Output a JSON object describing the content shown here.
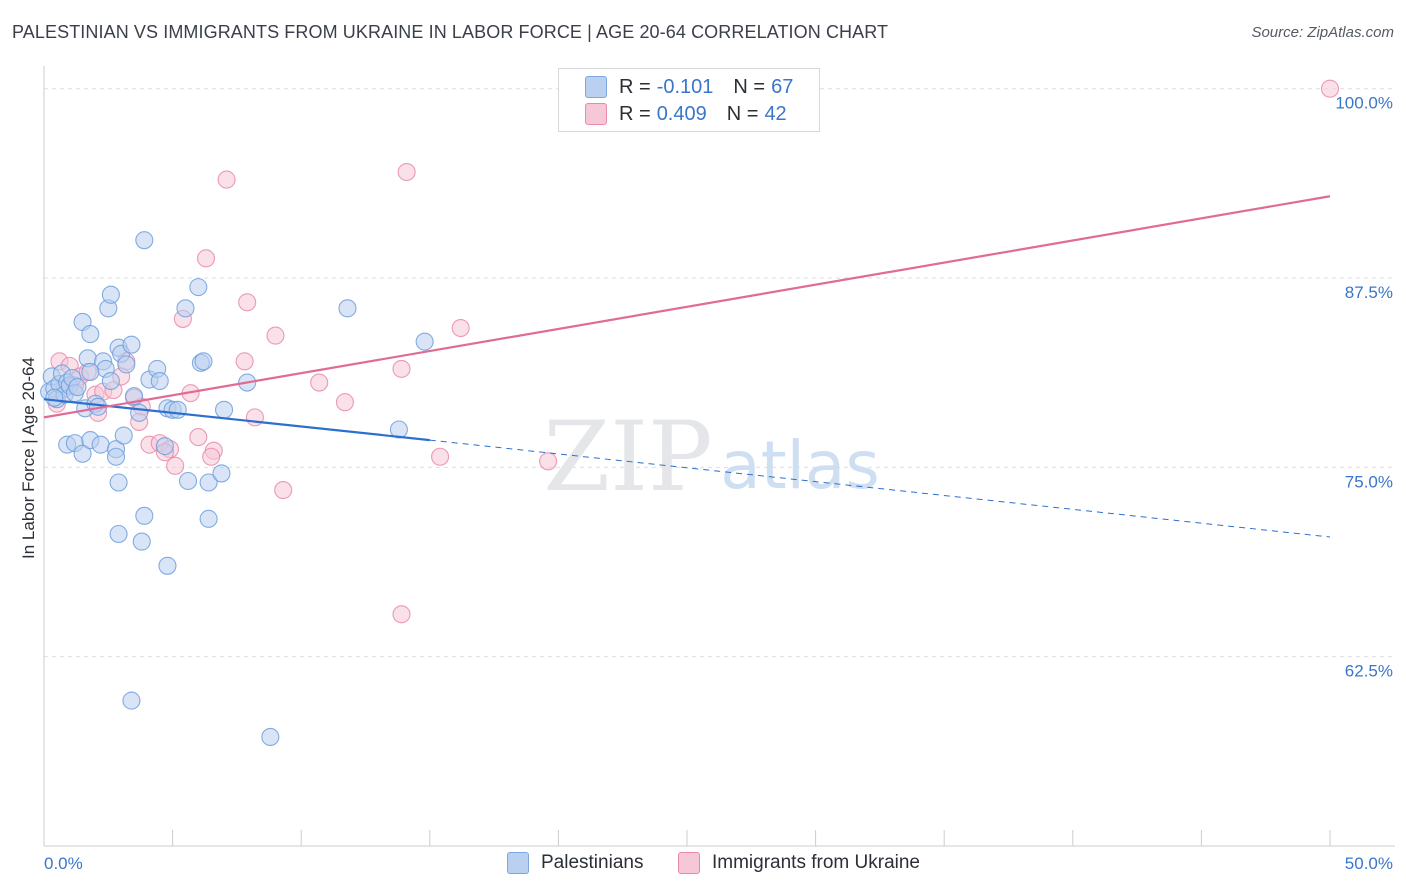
{
  "title": "PALESTINIAN VS IMMIGRANTS FROM UKRAINE IN LABOR FORCE | AGE 20-64 CORRELATION CHART",
  "source": "Source: ZipAtlas.com",
  "watermark": {
    "zip": "ZIP",
    "atlas": "atlas"
  },
  "legend": {
    "r_label": "R =",
    "n_label": "N =",
    "rows": [
      {
        "r": "-0.101",
        "n": "67",
        "color": "#7ea6e0",
        "fill": "#b9d0f1"
      },
      {
        "r": "0.409",
        "n": "42",
        "color": "#e98aa9",
        "fill": "#f6c7d6"
      }
    ]
  },
  "chart_data": {
    "type": "scatter",
    "title": "PALESTINIAN VS IMMIGRANTS FROM UKRAINE IN LABOR FORCE | AGE 20-64 CORRELATION CHART",
    "xlabel": "",
    "ylabel": "In Labor Force | Age 20-64",
    "xlim": [
      0,
      50
    ],
    "ylim": [
      50,
      101.5
    ],
    "x_tick_labels": [
      "0.0%",
      "50.0%"
    ],
    "y_ticks": [
      100,
      87.5,
      75,
      62.5
    ],
    "y_tick_labels": [
      "100.0%",
      "87.5%",
      "75.0%",
      "62.5%"
    ],
    "grid": true,
    "series": [
      {
        "name": "Palestinians",
        "color": "#6f9fdc",
        "fill": "#b9d0f1",
        "trend": {
          "x0": 0,
          "y0": 79.5,
          "x1": 15,
          "y1": 76.8,
          "dash_to_x": 50,
          "dash_to_y": 70.4
        },
        "points": [
          [
            0.2,
            80.0
          ],
          [
            0.3,
            81.0
          ],
          [
            0.4,
            80.2
          ],
          [
            0.5,
            79.5
          ],
          [
            0.6,
            80.5
          ],
          [
            0.7,
            81.2
          ],
          [
            0.8,
            79.8
          ],
          [
            0.9,
            80.6
          ],
          [
            1.0,
            80.4
          ],
          [
            1.1,
            80.9
          ],
          [
            1.2,
            79.9
          ],
          [
            1.3,
            80.3
          ],
          [
            1.5,
            84.6
          ],
          [
            1.7,
            82.2
          ],
          [
            1.8,
            83.8
          ],
          [
            1.6,
            78.9
          ],
          [
            2.0,
            79.2
          ],
          [
            2.1,
            79.0
          ],
          [
            2.3,
            82.0
          ],
          [
            2.4,
            81.5
          ],
          [
            2.5,
            85.5
          ],
          [
            2.6,
            86.4
          ],
          [
            2.9,
            82.9
          ],
          [
            3.0,
            82.5
          ],
          [
            3.2,
            81.8
          ],
          [
            3.4,
            83.1
          ],
          [
            3.5,
            79.7
          ],
          [
            3.7,
            78.6
          ],
          [
            3.9,
            90.0
          ],
          [
            4.1,
            80.8
          ],
          [
            4.4,
            81.5
          ],
          [
            4.5,
            80.7
          ],
          [
            4.8,
            78.9
          ],
          [
            5.0,
            78.8
          ],
          [
            5.2,
            78.8
          ],
          [
            5.5,
            85.5
          ],
          [
            6.0,
            86.9
          ],
          [
            6.1,
            81.9
          ],
          [
            6.2,
            82.0
          ],
          [
            7.0,
            78.8
          ],
          [
            7.9,
            80.6
          ],
          [
            11.8,
            85.5
          ],
          [
            14.8,
            83.3
          ],
          [
            13.8,
            77.5
          ],
          [
            0.9,
            76.5
          ],
          [
            1.2,
            76.6
          ],
          [
            1.5,
            75.9
          ],
          [
            1.8,
            76.8
          ],
          [
            2.2,
            76.5
          ],
          [
            2.8,
            76.2
          ],
          [
            3.1,
            77.1
          ],
          [
            2.8,
            75.7
          ],
          [
            2.9,
            74.0
          ],
          [
            4.7,
            76.4
          ],
          [
            5.6,
            74.1
          ],
          [
            6.4,
            74.0
          ],
          [
            6.9,
            74.6
          ],
          [
            6.4,
            71.6
          ],
          [
            3.9,
            71.8
          ],
          [
            2.9,
            70.6
          ],
          [
            3.8,
            70.1
          ],
          [
            4.8,
            68.5
          ],
          [
            3.4,
            59.6
          ],
          [
            8.8,
            57.2
          ],
          [
            1.8,
            81.3
          ],
          [
            2.6,
            80.7
          ],
          [
            0.4,
            79.6
          ]
        ]
      },
      {
        "name": "Immigrants from Ukraine",
        "color": "#e98aa9",
        "fill": "#f6c7d6",
        "trend": {
          "x0": 0,
          "y0": 78.3,
          "x1": 50,
          "y1": 92.9
        },
        "points": [
          [
            50.0,
            100.0
          ],
          [
            14.1,
            94.5
          ],
          [
            7.1,
            94.0
          ],
          [
            6.3,
            88.8
          ],
          [
            7.9,
            85.9
          ],
          [
            5.4,
            84.8
          ],
          [
            9.0,
            83.7
          ],
          [
            16.2,
            84.2
          ],
          [
            0.6,
            82.0
          ],
          [
            1.0,
            81.7
          ],
          [
            1.4,
            81.0
          ],
          [
            1.7,
            81.3
          ],
          [
            1.2,
            80.4
          ],
          [
            0.8,
            80.2
          ],
          [
            0.5,
            79.2
          ],
          [
            2.0,
            79.8
          ],
          [
            2.3,
            80.0
          ],
          [
            2.7,
            80.1
          ],
          [
            3.2,
            82.0
          ],
          [
            3.5,
            79.6
          ],
          [
            3.8,
            79.0
          ],
          [
            2.1,
            78.6
          ],
          [
            3.7,
            78.0
          ],
          [
            5.7,
            79.9
          ],
          [
            7.8,
            82.0
          ],
          [
            10.7,
            80.6
          ],
          [
            11.7,
            79.3
          ],
          [
            13.9,
            81.5
          ],
          [
            8.2,
            78.3
          ],
          [
            4.1,
            76.5
          ],
          [
            4.5,
            76.6
          ],
          [
            4.9,
            76.2
          ],
          [
            5.1,
            75.1
          ],
          [
            6.0,
            77.0
          ],
          [
            6.6,
            76.1
          ],
          [
            6.5,
            75.7
          ],
          [
            4.7,
            76.0
          ],
          [
            15.4,
            75.7
          ],
          [
            19.6,
            75.4
          ],
          [
            9.3,
            73.5
          ],
          [
            13.9,
            65.3
          ],
          [
            3.0,
            81.0
          ]
        ]
      }
    ]
  },
  "bottom_legend": [
    {
      "label": "Palestinians"
    },
    {
      "label": "Immigrants from Ukraine"
    }
  ]
}
